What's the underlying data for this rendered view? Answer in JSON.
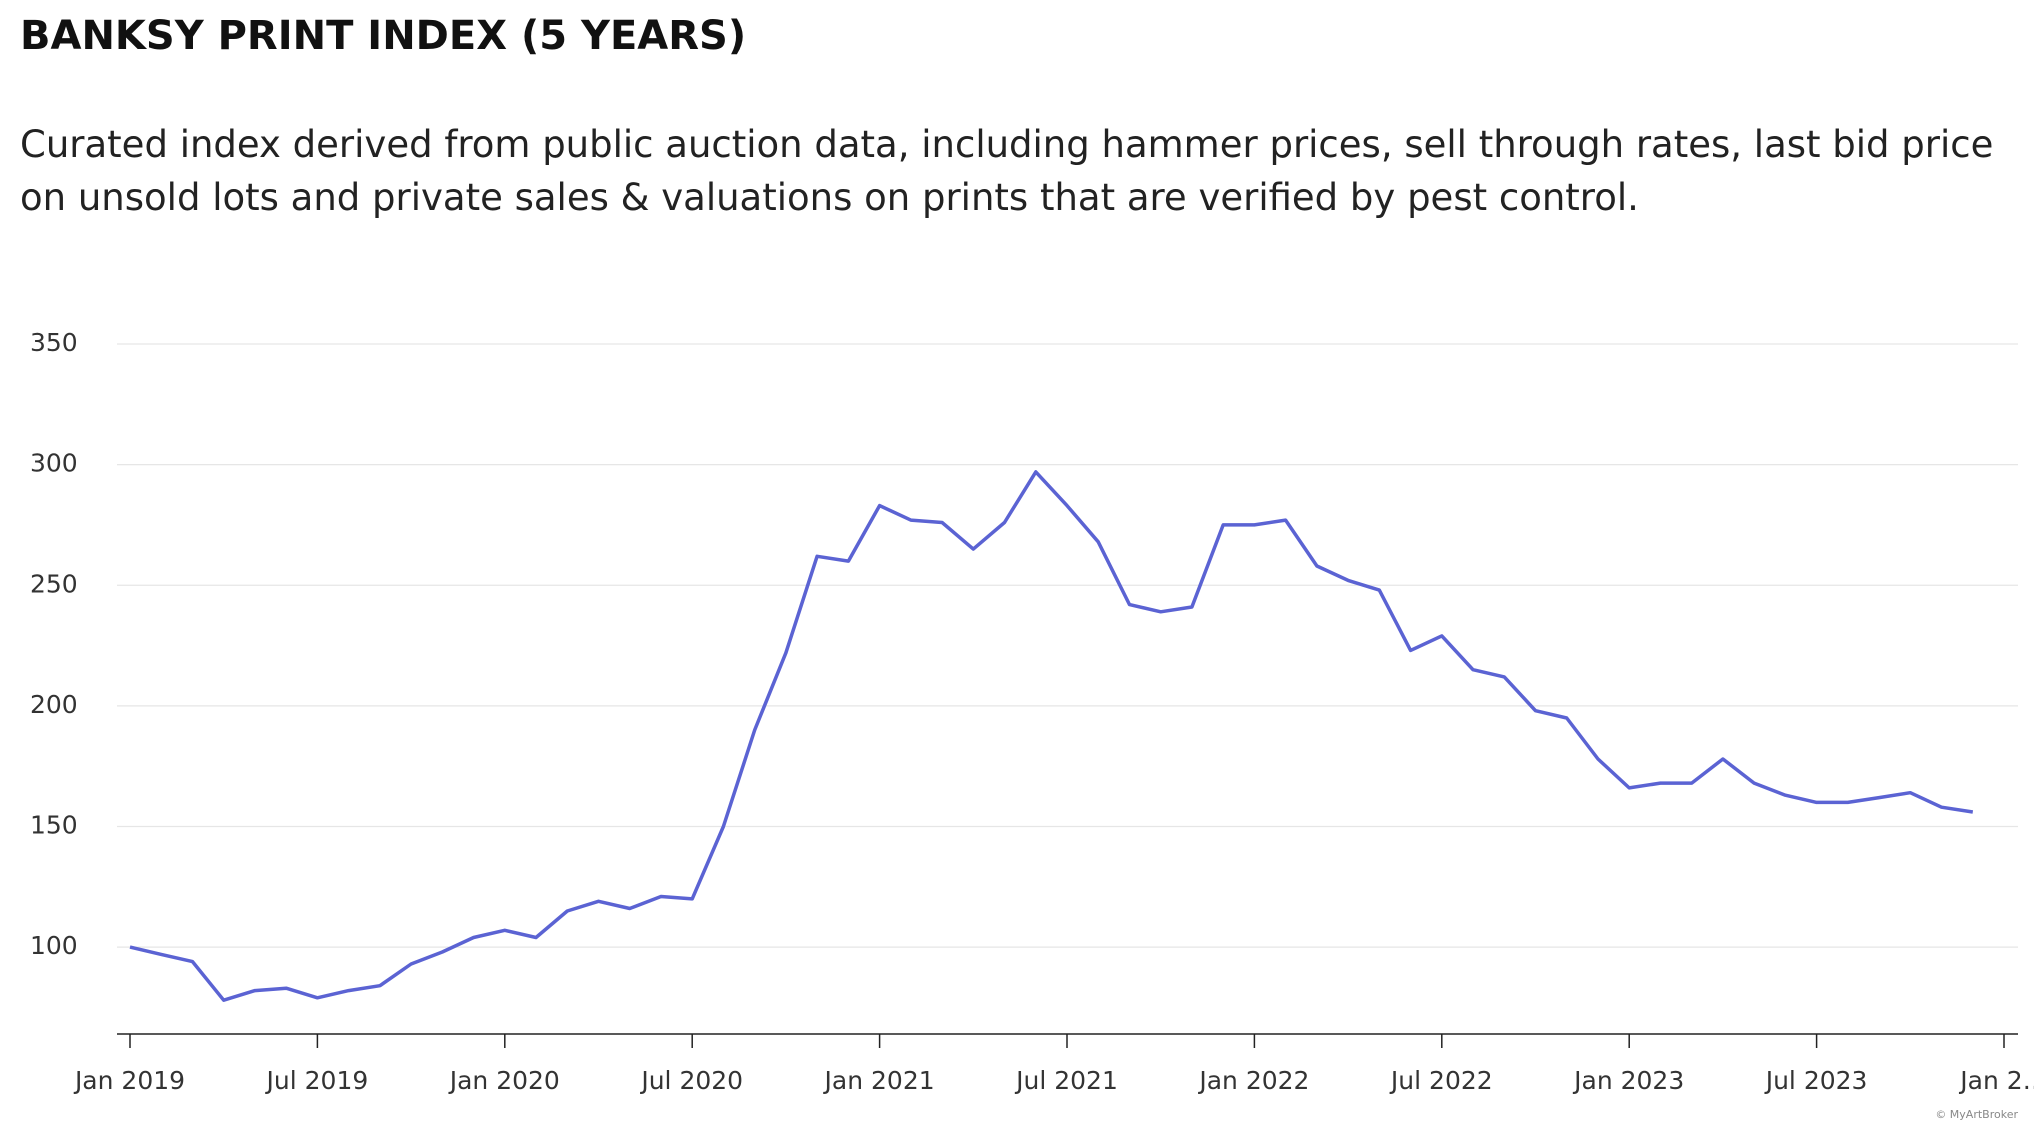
{
  "chart_data": {
    "type": "line",
    "title": "BANKSY PRINT INDEX (5 YEARS)",
    "subtitle": "Curated index derived from public auction data, including hammer prices, sell through rates, last bid price on unsold lots and private sales & valuations on prints that are verified by pest control.",
    "credit": "© MyArtBroker",
    "x": [
      "2019-01",
      "2019-02",
      "2019-03",
      "2019-04",
      "2019-05",
      "2019-06",
      "2019-07",
      "2019-08",
      "2019-09",
      "2019-10",
      "2019-11",
      "2019-12",
      "2020-01",
      "2020-02",
      "2020-03",
      "2020-04",
      "2020-05",
      "2020-06",
      "2020-07",
      "2020-08",
      "2020-09",
      "2020-10",
      "2020-11",
      "2020-12",
      "2021-01",
      "2021-02",
      "2021-03",
      "2021-04",
      "2021-05",
      "2021-06",
      "2021-07",
      "2021-08",
      "2021-09",
      "2021-10",
      "2021-11",
      "2021-12",
      "2022-01",
      "2022-02",
      "2022-03",
      "2022-04",
      "2022-05",
      "2022-06",
      "2022-07",
      "2022-08",
      "2022-09",
      "2022-10",
      "2022-11",
      "2022-12",
      "2023-01",
      "2023-02",
      "2023-03",
      "2023-04",
      "2023-05",
      "2023-06",
      "2023-07",
      "2023-08",
      "2023-09",
      "2023-10",
      "2023-11",
      "2023-12"
    ],
    "series": [
      {
        "name": "Banksy Print Index",
        "color": "#5b63d3",
        "values": [
          100,
          97,
          94,
          78,
          82,
          83,
          79,
          82,
          84,
          93,
          98,
          104,
          107,
          104,
          115,
          119,
          116,
          121,
          120,
          150,
          190,
          222,
          262,
          260,
          283,
          277,
          276,
          265,
          276,
          297,
          283,
          268,
          242,
          239,
          241,
          275,
          275,
          277,
          258,
          252,
          248,
          223,
          229,
          215,
          212,
          198,
          195,
          178,
          166,
          168,
          168,
          178,
          168,
          163,
          160,
          160,
          162,
          164,
          158,
          156
        ]
      }
    ],
    "xlim": [
      "2019-01",
      "2024-01"
    ],
    "xticks": [
      {
        "value": "2019-01",
        "label": "Jan 2019"
      },
      {
        "value": "2019-07",
        "label": "Jul 2019"
      },
      {
        "value": "2020-01",
        "label": "Jan 2020"
      },
      {
        "value": "2020-07",
        "label": "Jul 2020"
      },
      {
        "value": "2021-01",
        "label": "Jan 2021"
      },
      {
        "value": "2021-07",
        "label": "Jul 2021"
      },
      {
        "value": "2022-01",
        "label": "Jan 2022"
      },
      {
        "value": "2022-07",
        "label": "Jul 2022"
      },
      {
        "value": "2023-01",
        "label": "Jan 2023"
      },
      {
        "value": "2023-07",
        "label": "Jul 2023"
      },
      {
        "value": "2024-01",
        "label": "Jan 2…"
      }
    ],
    "ylim": [
      64,
      350
    ],
    "yticks": [
      100,
      150,
      200,
      250,
      300,
      350
    ],
    "grid": true
  }
}
